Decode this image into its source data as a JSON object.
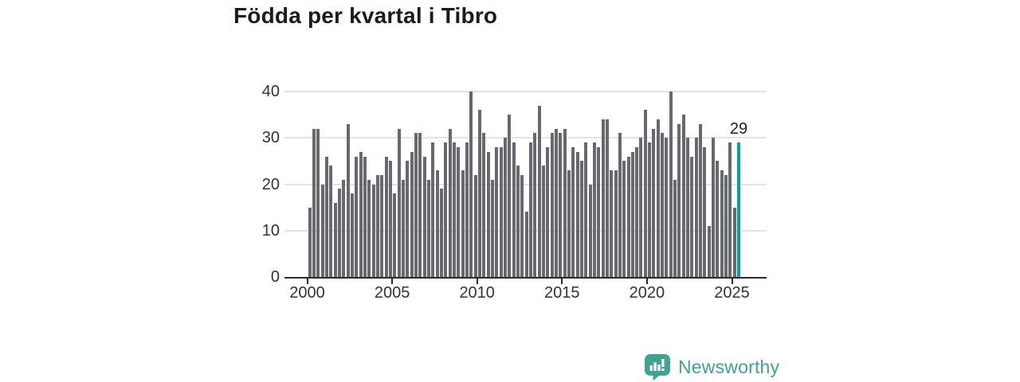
{
  "title": "Födda per kvartal i Tibro",
  "annotation": {
    "label": "29"
  },
  "logo": {
    "text": "Newsworthy"
  },
  "colors": {
    "bar": "#68686f",
    "highlight": "#00a5a1",
    "grid": "#e4e4e4",
    "axis": "#2b2b2f",
    "text": "#333336",
    "title": "#1c1c1e",
    "logo": "#3fa394"
  },
  "chart_data": {
    "type": "bar",
    "title": "Födda per kvartal i Tibro",
    "x_start": "2000-Q1",
    "x_end": "2025-Q2",
    "x_tick_labels": [
      "2000",
      "2005",
      "2010",
      "2015",
      "2020",
      "2025"
    ],
    "y_tick_values": [
      0,
      10,
      20,
      30,
      40
    ],
    "ylim": [
      0,
      40
    ],
    "grid": "horizontal",
    "legend": "none",
    "values": [
      15,
      32,
      32,
      20,
      26,
      24,
      16,
      19,
      21,
      33,
      18,
      26,
      27,
      26,
      21,
      20,
      22,
      22,
      26,
      25,
      18,
      32,
      21,
      25,
      27,
      31,
      31,
      26,
      21,
      29,
      23,
      19,
      29,
      32,
      29,
      28,
      23,
      29,
      40,
      22,
      36,
      31,
      27,
      21,
      28,
      28,
      30,
      35,
      29,
      24,
      22,
      14,
      29,
      31,
      37,
      24,
      28,
      31,
      32,
      31,
      32,
      23,
      28,
      27,
      25,
      29,
      20,
      29,
      28,
      34,
      34,
      23,
      23,
      31,
      25,
      26,
      27,
      28,
      30,
      36,
      29,
      32,
      34,
      31,
      30,
      40,
      21,
      33,
      35,
      30,
      26,
      30,
      33,
      28,
      11,
      30,
      25,
      23,
      22,
      29,
      15,
      29
    ],
    "highlight_index": 101,
    "highlight_value_label": "29"
  }
}
